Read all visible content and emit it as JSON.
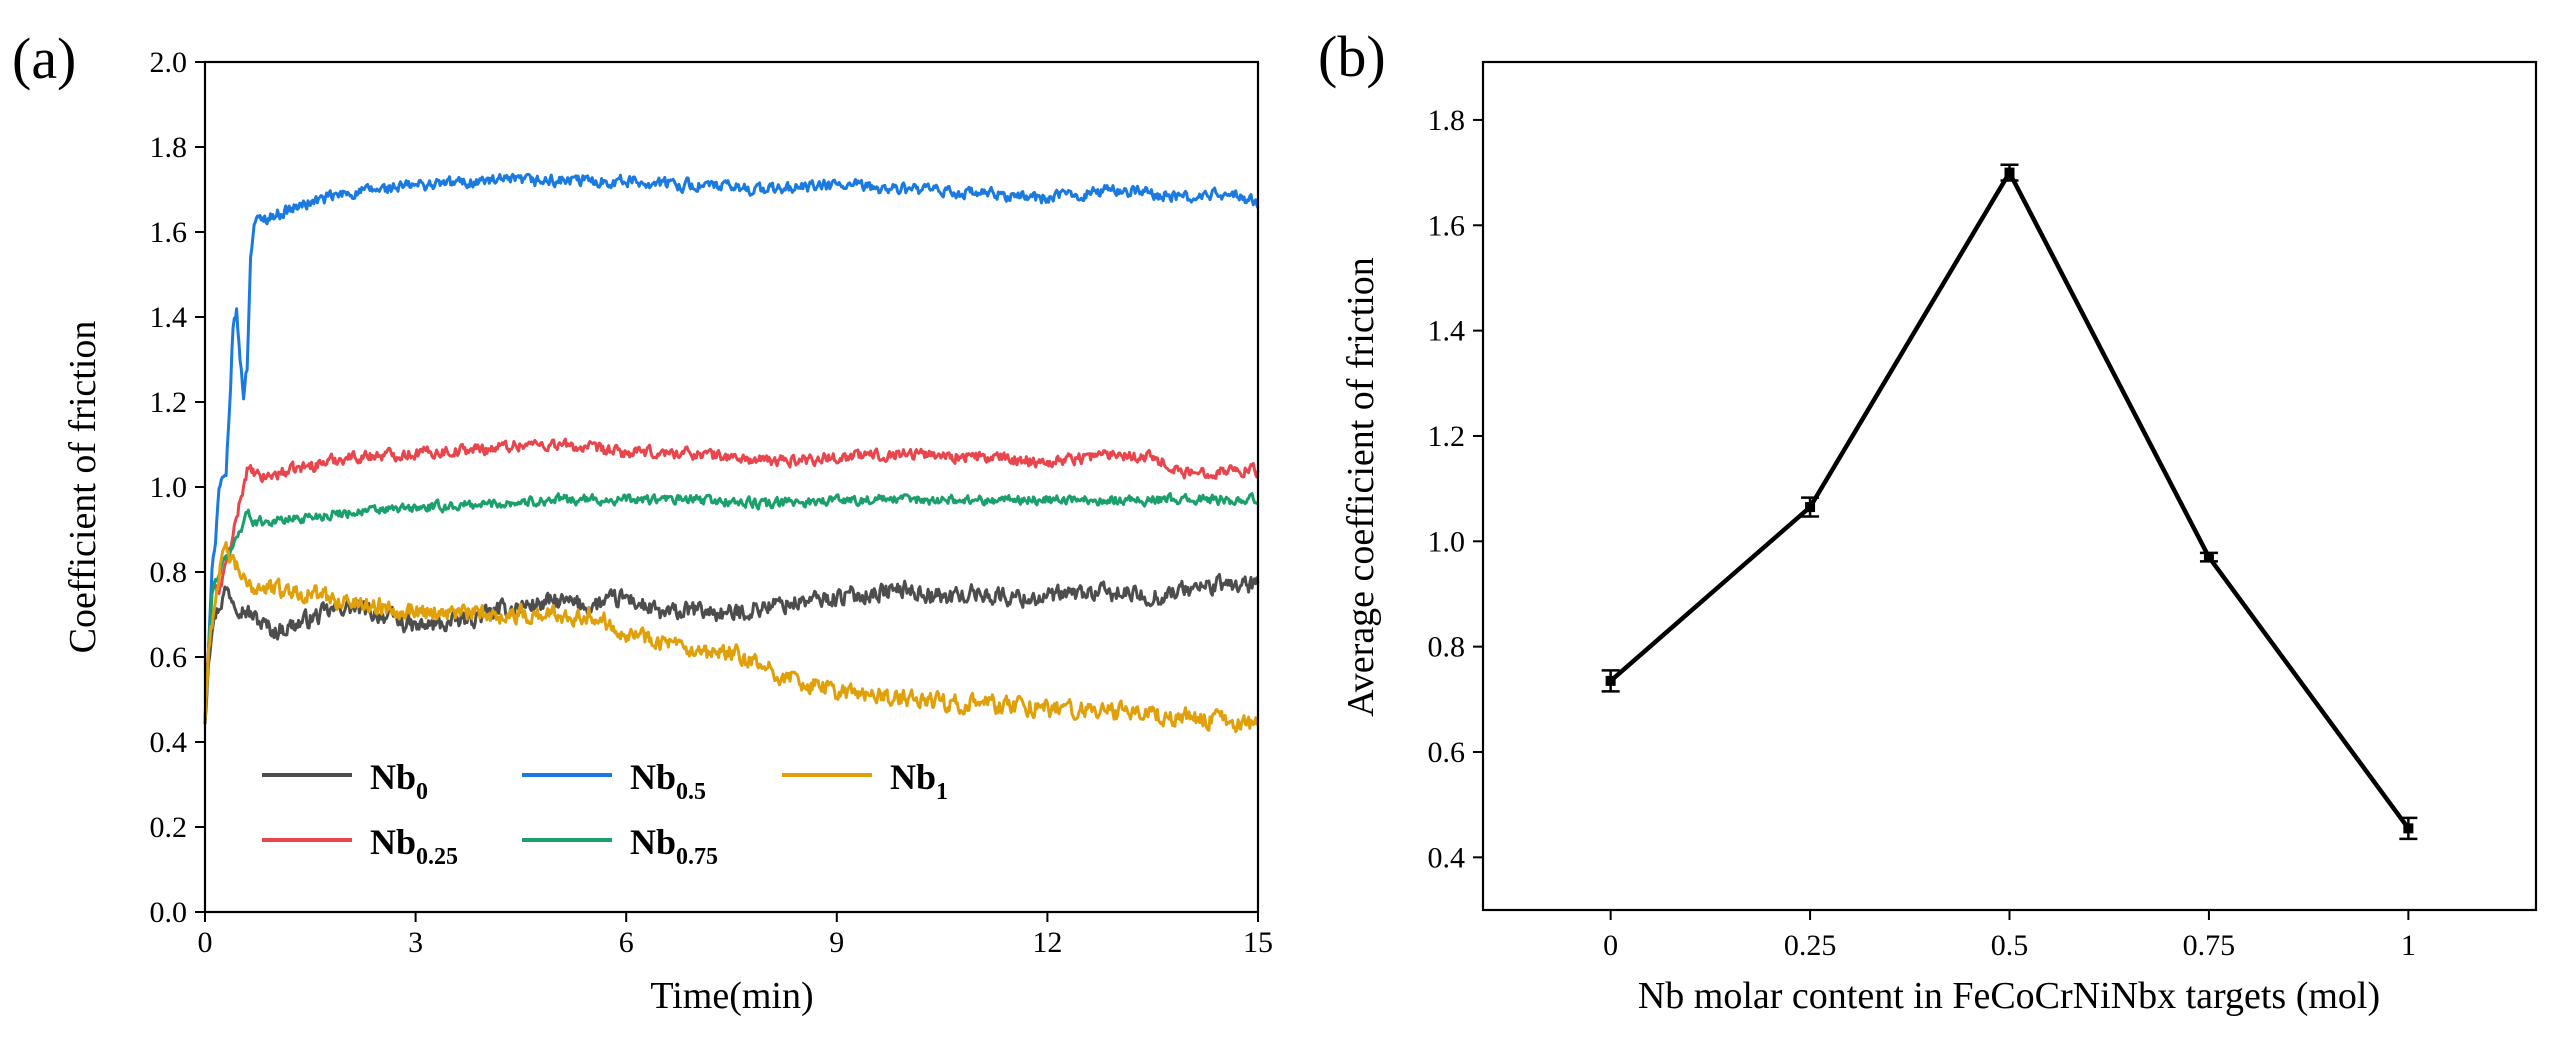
{
  "chart_data": [
    {
      "panel": "(a)",
      "type": "line",
      "xlabel": "Time(min)",
      "ylabel": "Coefficient of friction",
      "xlim": [
        0,
        15
      ],
      "ylim": [
        0.0,
        2.0
      ],
      "xticks": [
        0,
        3,
        6,
        9,
        12,
        15
      ],
      "xtick_labels": [
        "0",
        "3",
        "6",
        "9",
        "12",
        "15"
      ],
      "yticks": [
        0.0,
        0.2,
        0.4,
        0.6,
        0.8,
        1.0,
        1.2,
        1.4,
        1.6,
        1.8,
        2.0
      ],
      "ytick_labels": [
        "0.0",
        "0.2",
        "0.4",
        "0.6",
        "0.8",
        "1.0",
        "1.2",
        "1.4",
        "1.6",
        "1.8",
        "2.0"
      ],
      "legend_position": "lower-left",
      "series": [
        {
          "name": "Nb0",
          "label_main": "Nb",
          "label_sub": "0",
          "color": "#4d4d4d",
          "x": [
            0,
            0.05,
            0.1,
            0.2,
            0.3,
            0.5,
            0.8,
            1.0,
            1.5,
            2.0,
            2.5,
            3.0,
            3.5,
            4.0,
            4.5,
            5.0,
            5.5,
            6.0,
            6.5,
            7.0,
            7.5,
            8.0,
            8.5,
            9.0,
            9.5,
            10.0,
            10.5,
            11.0,
            11.5,
            12.0,
            12.5,
            13.0,
            13.5,
            14.0,
            14.5,
            15.0
          ],
          "y": [
            0.45,
            0.6,
            0.68,
            0.72,
            0.76,
            0.72,
            0.68,
            0.66,
            0.69,
            0.72,
            0.7,
            0.67,
            0.68,
            0.7,
            0.72,
            0.73,
            0.72,
            0.74,
            0.7,
            0.71,
            0.7,
            0.72,
            0.73,
            0.74,
            0.75,
            0.76,
            0.74,
            0.75,
            0.74,
            0.74,
            0.75,
            0.75,
            0.74,
            0.76,
            0.77,
            0.77
          ],
          "noise": 0.018
        },
        {
          "name": "Nb0.25",
          "label_main": "Nb",
          "label_sub": "0.25",
          "color": "#e8454d",
          "x": [
            0,
            0.05,
            0.1,
            0.2,
            0.3,
            0.4,
            0.5,
            0.6,
            0.8,
            1.0,
            1.5,
            2.0,
            3.0,
            4.0,
            4.5,
            5.0,
            6.0,
            7.0,
            8.0,
            9.0,
            10.0,
            11.0,
            12.0,
            13.0,
            13.5,
            14.0,
            14.5,
            15.0
          ],
          "y": [
            0.45,
            0.62,
            0.78,
            0.75,
            0.82,
            0.88,
            0.97,
            1.04,
            1.02,
            1.03,
            1.05,
            1.07,
            1.08,
            1.09,
            1.1,
            1.1,
            1.08,
            1.08,
            1.06,
            1.07,
            1.08,
            1.07,
            1.06,
            1.08,
            1.07,
            1.03,
            1.04,
            1.04
          ],
          "noise": 0.012
        },
        {
          "name": "Nb0.5",
          "label_main": "Nb",
          "label_sub": "0.5",
          "color": "#1a7ae0",
          "x": [
            0,
            0.05,
            0.1,
            0.15,
            0.2,
            0.3,
            0.35,
            0.4,
            0.45,
            0.5,
            0.55,
            0.6,
            0.65,
            0.7,
            0.8,
            1.0,
            1.5,
            2.0,
            3.0,
            4.0,
            5.0,
            6.0,
            7.0,
            8.0,
            9.0,
            10.0,
            11.0,
            12.0,
            13.0,
            14.0,
            14.5,
            15.0
          ],
          "y": [
            0.45,
            0.6,
            0.82,
            0.88,
            1.0,
            1.02,
            1.18,
            1.38,
            1.41,
            1.3,
            1.22,
            1.28,
            1.55,
            1.62,
            1.63,
            1.64,
            1.67,
            1.69,
            1.71,
            1.72,
            1.72,
            1.72,
            1.71,
            1.7,
            1.71,
            1.7,
            1.69,
            1.68,
            1.7,
            1.68,
            1.69,
            1.67
          ],
          "noise": 0.012
        },
        {
          "name": "Nb0.75",
          "label_main": "Nb",
          "label_sub": "0.75",
          "color": "#1aa06a",
          "x": [
            0,
            0.05,
            0.1,
            0.2,
            0.3,
            0.4,
            0.5,
            0.6,
            0.7,
            1.0,
            1.5,
            2.0,
            3.0,
            4.0,
            5.0,
            6.0,
            7.0,
            8.0,
            9.0,
            10.0,
            11.0,
            12.0,
            13.0,
            14.0,
            15.0
          ],
          "y": [
            0.45,
            0.6,
            0.75,
            0.8,
            0.83,
            0.86,
            0.9,
            0.94,
            0.92,
            0.92,
            0.93,
            0.94,
            0.95,
            0.96,
            0.97,
            0.97,
            0.97,
            0.96,
            0.97,
            0.97,
            0.97,
            0.97,
            0.97,
            0.97,
            0.97
          ],
          "noise": 0.01
        },
        {
          "name": "Nb1",
          "label_main": "Nb",
          "label_sub": "1",
          "color": "#e0a00a",
          "x": [
            0,
            0.05,
            0.1,
            0.2,
            0.3,
            0.4,
            0.5,
            0.6,
            0.8,
            1.0,
            1.5,
            2.0,
            3.0,
            4.0,
            5.0,
            5.5,
            6.0,
            6.5,
            7.0,
            7.5,
            8.0,
            8.5,
            9.0,
            9.5,
            10.0,
            11.0,
            12.0,
            13.0,
            14.0,
            14.5,
            15.0
          ],
          "y": [
            0.45,
            0.62,
            0.68,
            0.8,
            0.85,
            0.82,
            0.8,
            0.76,
            0.77,
            0.76,
            0.75,
            0.73,
            0.71,
            0.7,
            0.7,
            0.7,
            0.66,
            0.64,
            0.6,
            0.61,
            0.57,
            0.54,
            0.52,
            0.51,
            0.5,
            0.49,
            0.48,
            0.47,
            0.46,
            0.45,
            0.44
          ],
          "noise": 0.018
        }
      ]
    },
    {
      "panel": "(b)",
      "type": "line",
      "xlabel": "Nb molar content in FeCoCrNiNbx targets (mol)",
      "ylabel": "Average coefficient of friction",
      "categories": [
        "0",
        "0.25",
        "0.5",
        "0.75",
        "1"
      ],
      "x": [
        0,
        0.25,
        0.5,
        0.75,
        1
      ],
      "values": [
        0.735,
        1.065,
        1.7,
        0.97,
        0.455
      ],
      "errors": [
        0.02,
        0.018,
        0.015,
        0.008,
        0.02
      ],
      "xlim": [
        -0.16,
        1.16
      ],
      "ylim": [
        0.3,
        1.91
      ],
      "yticks": [
        0.4,
        0.6,
        0.8,
        1.0,
        1.2,
        1.4,
        1.6,
        1.8
      ],
      "ytick_labels": [
        "0.4",
        "0.6",
        "0.8",
        "1.0",
        "1.2",
        "1.4",
        "1.6",
        "1.8"
      ],
      "color": "#000000"
    }
  ]
}
